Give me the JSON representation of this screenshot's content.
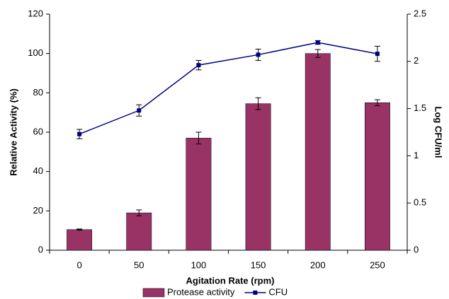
{
  "chart_data": {
    "type": "bar",
    "x_label": "Agitation Rate (rpm)",
    "y_label": "Relative Activity (%)",
    "y2_label": "Log CFU/ml",
    "categories": [
      "0",
      "50",
      "100",
      "150",
      "200",
      "250"
    ],
    "series": [
      {
        "name": "Protease activity",
        "type": "bar",
        "color": "#993366",
        "values": [
          10.5,
          19,
          57,
          74.5,
          100,
          75
        ],
        "errors": [
          0.3,
          1.5,
          3,
          3,
          2,
          1.5
        ]
      },
      {
        "name": "CFU",
        "type": "line",
        "axis": "y2",
        "color": "#000080",
        "values": [
          1.23,
          1.48,
          1.96,
          2.07,
          2.2,
          2.08
        ],
        "errors": [
          0.05,
          0.06,
          0.05,
          0.06,
          0.02,
          0.08
        ]
      }
    ],
    "ylim": [
      0,
      120
    ],
    "yticks": [
      0,
      20,
      40,
      60,
      80,
      100,
      120
    ],
    "y2lim": [
      0,
      2.5
    ],
    "y2ticks": [
      0,
      0.5,
      1,
      1.5,
      2,
      2.5
    ],
    "legend": "bottom"
  }
}
